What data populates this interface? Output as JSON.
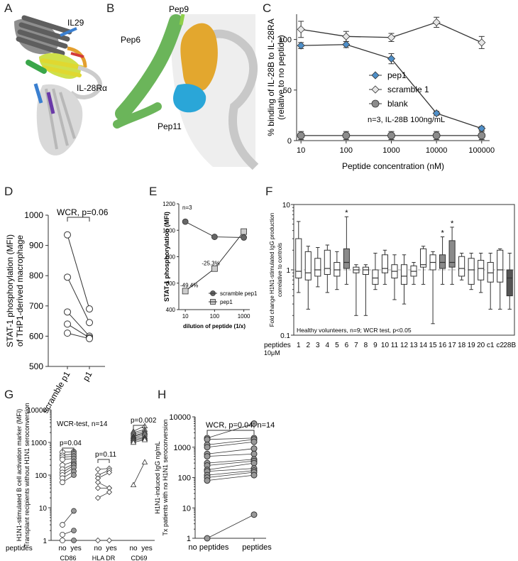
{
  "panels": {
    "A": {
      "letter": "A",
      "labels": {
        "il29": "IL29",
        "il28ra": "IL-28Rα"
      }
    },
    "B": {
      "letter": "B",
      "labels": {
        "pep9": "Pep9",
        "pep6": "Pep6",
        "pep11": "Pep11"
      }
    },
    "C": {
      "letter": "C"
    },
    "D": {
      "letter": "D"
    },
    "E": {
      "letter": "E"
    },
    "F": {
      "letter": "F"
    },
    "G": {
      "letter": "G"
    },
    "H": {
      "letter": "H"
    }
  },
  "colors": {
    "pep1_blue": "#4f8fc8",
    "scramble_gray": "#e6e6e6",
    "blank_gray": "#8c8c8c",
    "dark_box": "#555555",
    "mid_box": "#8a8a8a",
    "helix_green": "#6bb55a",
    "pep9_orange": "#e3a72e",
    "pep11_cyan": "#2aa6d8"
  },
  "chart_data": [
    {
      "panel": "C",
      "type": "line",
      "xscale": "log",
      "x": [
        10,
        100,
        1000,
        10000,
        100000
      ],
      "xticklabels": [
        "10",
        "100",
        "1000",
        "10000",
        "100000"
      ],
      "xlabel": "Peptide concentration (nM)",
      "ylabel": "% binding of IL-28B to IL-28RA",
      "ylabel2": "(relative to no peptide)",
      "ylim": [
        0,
        125
      ],
      "yticks": [
        0,
        50,
        100
      ],
      "series": [
        {
          "name": "pep1",
          "values": [
            94,
            95,
            81,
            27,
            12
          ],
          "err": [
            3,
            3,
            5,
            2,
            2
          ],
          "marker": "diamond",
          "fill": "#4f8fc8"
        },
        {
          "name": "scramble 1",
          "values": [
            110,
            103,
            102,
            117,
            97
          ],
          "err": [
            8,
            5,
            4,
            5,
            6
          ],
          "marker": "diamond",
          "fill": "#e6e6e6"
        },
        {
          "name": "blank",
          "values": [
            5,
            5,
            5,
            5,
            5
          ],
          "err": [
            4,
            4,
            4,
            4,
            4
          ],
          "marker": "circle",
          "fill": "#8c8c8c"
        }
      ],
      "annotation": "n=3, IL-28B 100ng/mL",
      "legend_position": "right"
    },
    {
      "panel": "D",
      "type": "scatter",
      "categories": [
        "scramble p1",
        "p1"
      ],
      "ylabel": "STAT-1 phosphorylation (MFI)",
      "ylabel2": "of THP1-derived macrophage",
      "ylim": [
        500,
        1000
      ],
      "yticks": [
        500,
        600,
        700,
        800,
        900,
        1000
      ],
      "pairs": [
        [
          935,
          690
        ],
        [
          795,
          645
        ],
        [
          680,
          600
        ],
        [
          640,
          595
        ],
        [
          610,
          592
        ]
      ],
      "annotation": "WCR, p=0.06"
    },
    {
      "panel": "E",
      "type": "line",
      "xscale": "log",
      "x": [
        10,
        100,
        1000
      ],
      "xticklabels": [
        "10",
        "100",
        "1000"
      ],
      "xlabel": "dilution of peptide (1/x)",
      "ylabel": "STAT-1 phosphorylation (MFI)",
      "ylim": [
        400,
        1200
      ],
      "yticks": [
        400,
        600,
        800,
        1000,
        1200
      ],
      "series": [
        {
          "name": "scramble pep1",
          "values": [
            1065,
            950,
            945
          ],
          "marker": "circle",
          "fill": "#666666"
        },
        {
          "name": "pep1",
          "values": [
            540,
            710,
            990
          ],
          "marker": "square",
          "fill": "#cccccc"
        }
      ],
      "labels": [
        "-49.4%",
        "-25.3%"
      ],
      "annotation": "n=3",
      "legend_position": "bottom-right"
    },
    {
      "panel": "F",
      "type": "box",
      "yscale": "log",
      "ylim": [
        0.1,
        10
      ],
      "yticks": [
        0.1,
        1,
        10
      ],
      "yticklabels": [
        "0.1",
        "1",
        "10"
      ],
      "ylabel": "Fold change H1N1-stimulated IgG production",
      "ylabel2": "correlative to controls",
      "reference_line": 1,
      "categories": [
        "1",
        "2",
        "3",
        "4",
        "5",
        "6",
        "7",
        "8",
        "9",
        "10",
        "11",
        "12",
        "13",
        "14",
        "15",
        "16",
        "17",
        "18",
        "19",
        "20",
        "c1",
        "c2",
        "28B"
      ],
      "boxes": [
        {
          "min": 0.45,
          "q1": 0.75,
          "med": 0.95,
          "q3": 3.0,
          "max": 5.5,
          "shade": "white"
        },
        {
          "min": 0.25,
          "q1": 0.7,
          "med": 0.9,
          "q3": 1.9,
          "max": 2.3,
          "shade": "white"
        },
        {
          "min": 0.55,
          "q1": 0.8,
          "med": 1.0,
          "q3": 1.5,
          "max": 2.2,
          "shade": "white"
        },
        {
          "min": 0.45,
          "q1": 0.85,
          "med": 1.05,
          "q3": 2.0,
          "max": 2.4,
          "shade": "white"
        },
        {
          "min": 0.5,
          "q1": 0.8,
          "med": 1.0,
          "q3": 1.3,
          "max": 1.9,
          "shade": "white"
        },
        {
          "min": 0.6,
          "q1": 1.05,
          "med": 1.3,
          "q3": 2.1,
          "max": 6.5,
          "shade": "dark"
        },
        {
          "min": 0.2,
          "q1": 0.9,
          "med": 1.0,
          "q3": 1.1,
          "max": 1.2,
          "shade": "white"
        },
        {
          "min": 0.2,
          "q1": 0.85,
          "med": 1.0,
          "q3": 1.1,
          "max": 1.2,
          "shade": "white"
        },
        {
          "min": 0.5,
          "q1": 0.6,
          "med": 0.75,
          "q3": 1.0,
          "max": 1.8,
          "shade": "white"
        },
        {
          "min": 0.6,
          "q1": 0.9,
          "med": 1.05,
          "q3": 1.7,
          "max": 2.0,
          "shade": "white"
        },
        {
          "min": 0.35,
          "q1": 0.75,
          "med": 0.95,
          "q3": 1.2,
          "max": 1.7,
          "shade": "white"
        },
        {
          "min": 0.3,
          "q1": 0.6,
          "med": 0.8,
          "q3": 1.2,
          "max": 1.7,
          "shade": "white"
        },
        {
          "min": 0.6,
          "q1": 0.8,
          "med": 0.95,
          "q3": 1.15,
          "max": 1.3,
          "shade": "white"
        },
        {
          "min": 0.6,
          "q1": 1.1,
          "med": 1.2,
          "q3": 2.1,
          "max": 2.3,
          "shade": "white"
        },
        {
          "min": 0.15,
          "q1": 1.0,
          "med": 1.3,
          "q3": 1.7,
          "max": 1.9,
          "shade": "white"
        },
        {
          "min": 0.6,
          "q1": 1.05,
          "med": 1.3,
          "q3": 1.7,
          "max": 3.2,
          "shade": "dark"
        },
        {
          "min": 0.6,
          "q1": 1.1,
          "med": 1.3,
          "q3": 2.8,
          "max": 4.5,
          "shade": "dark"
        },
        {
          "min": 0.7,
          "q1": 0.8,
          "med": 1.05,
          "q3": 1.6,
          "max": 1.8,
          "shade": "white"
        },
        {
          "min": 0.5,
          "q1": 0.6,
          "med": 1.0,
          "q3": 1.5,
          "max": 1.8,
          "shade": "white"
        },
        {
          "min": 0.45,
          "q1": 0.7,
          "med": 1.05,
          "q3": 1.4,
          "max": 1.8,
          "shade": "white"
        },
        {
          "min": 0.25,
          "q1": 0.65,
          "med": 0.9,
          "q3": 1.3,
          "max": 1.8,
          "shade": "white"
        },
        {
          "min": 0.25,
          "q1": 0.65,
          "med": 1.0,
          "q3": 2.0,
          "max": 2.1,
          "shade": "white"
        },
        {
          "min": 0.25,
          "q1": 0.4,
          "med": 0.75,
          "q3": 1.0,
          "max": 1.8,
          "shade": "darkest"
        }
      ],
      "stars": [
        6,
        16,
        17
      ],
      "star_text": "*",
      "annotation": "Healthy volunteers, n=9; WCR test, p<0.05",
      "xprefix": "peptides",
      "xprefix2": "10μM"
    },
    {
      "panel": "G",
      "type": "scatter",
      "yscale": "log",
      "ylim": [
        1,
        10000
      ],
      "yticks": [
        1,
        10,
        100,
        1000,
        10000
      ],
      "yticklabels": [
        "1",
        "10",
        "100",
        "1000",
        "10000"
      ],
      "ylabel": "H1N1-stimulated B cell activation marker (MFI)",
      "ylabel2": "Transplant recipients without H1N1 seroconversion",
      "annotation": "WCR-test, n=14",
      "xprefix": "peptides",
      "groups": [
        {
          "name": "CD86",
          "no_label": "no",
          "yes_label": "yes",
          "marker": "circle",
          "p": "p=0.04",
          "pairs": [
            [
              500,
              520
            ],
            [
              400,
              450
            ],
            [
              350,
              380
            ],
            [
              300,
              320
            ],
            [
              200,
              260
            ],
            [
              150,
              220
            ],
            [
              120,
              200
            ],
            [
              100,
              170
            ],
            [
              80,
              130
            ],
            [
              60,
              100
            ],
            [
              3,
              8
            ],
            [
              1.5,
              2
            ],
            [
              1,
              1
            ]
          ]
        },
        {
          "name": "HLA DR",
          "no_label": "no",
          "yes_label": "yes",
          "marker": "diamond",
          "p": "p=0.11",
          "pairs": [
            [
              150,
              160
            ],
            [
              100,
              140
            ],
            [
              80,
              120
            ],
            [
              60,
              40
            ],
            [
              40,
              40
            ],
            [
              20,
              30
            ],
            [
              1,
              1
            ]
          ]
        },
        {
          "name": "CD69",
          "no_label": "no",
          "yes_label": "yes",
          "marker": "triangle",
          "p": "p=0.002",
          "pairs": [
            [
              2200,
              3200
            ],
            [
              2000,
              2500
            ],
            [
              1800,
              2200
            ],
            [
              1600,
              2000
            ],
            [
              1500,
              1900
            ],
            [
              1400,
              1700
            ],
            [
              1300,
              1500
            ],
            [
              1200,
              1400
            ],
            [
              1100,
              1300
            ],
            [
              1000,
              1200
            ],
            [
              50,
              250
            ]
          ]
        }
      ]
    },
    {
      "panel": "H",
      "type": "scatter",
      "yscale": "log",
      "ylim": [
        1,
        10000
      ],
      "yticks": [
        1,
        10,
        100,
        1000,
        10000
      ],
      "yticklabels": [
        "1",
        "10",
        "100",
        "1000",
        "10000"
      ],
      "ylabel": "H1N1-induced IgG ng/mL",
      "ylabel2": "Tx patients with no H1N1 seroconversion",
      "categories": [
        "no peptides",
        "peptides"
      ],
      "pairs": [
        [
          2000,
          6000
        ],
        [
          1800,
          2000
        ],
        [
          1200,
          1800
        ],
        [
          1000,
          1500
        ],
        [
          600,
          900
        ],
        [
          500,
          600
        ],
        [
          300,
          400
        ],
        [
          250,
          350
        ],
        [
          180,
          300
        ],
        [
          160,
          200
        ],
        [
          120,
          170
        ],
        [
          100,
          150
        ],
        [
          80,
          120
        ],
        [
          1,
          6
        ]
      ],
      "annotation": "WCR, p=0.04; n=14"
    }
  ]
}
